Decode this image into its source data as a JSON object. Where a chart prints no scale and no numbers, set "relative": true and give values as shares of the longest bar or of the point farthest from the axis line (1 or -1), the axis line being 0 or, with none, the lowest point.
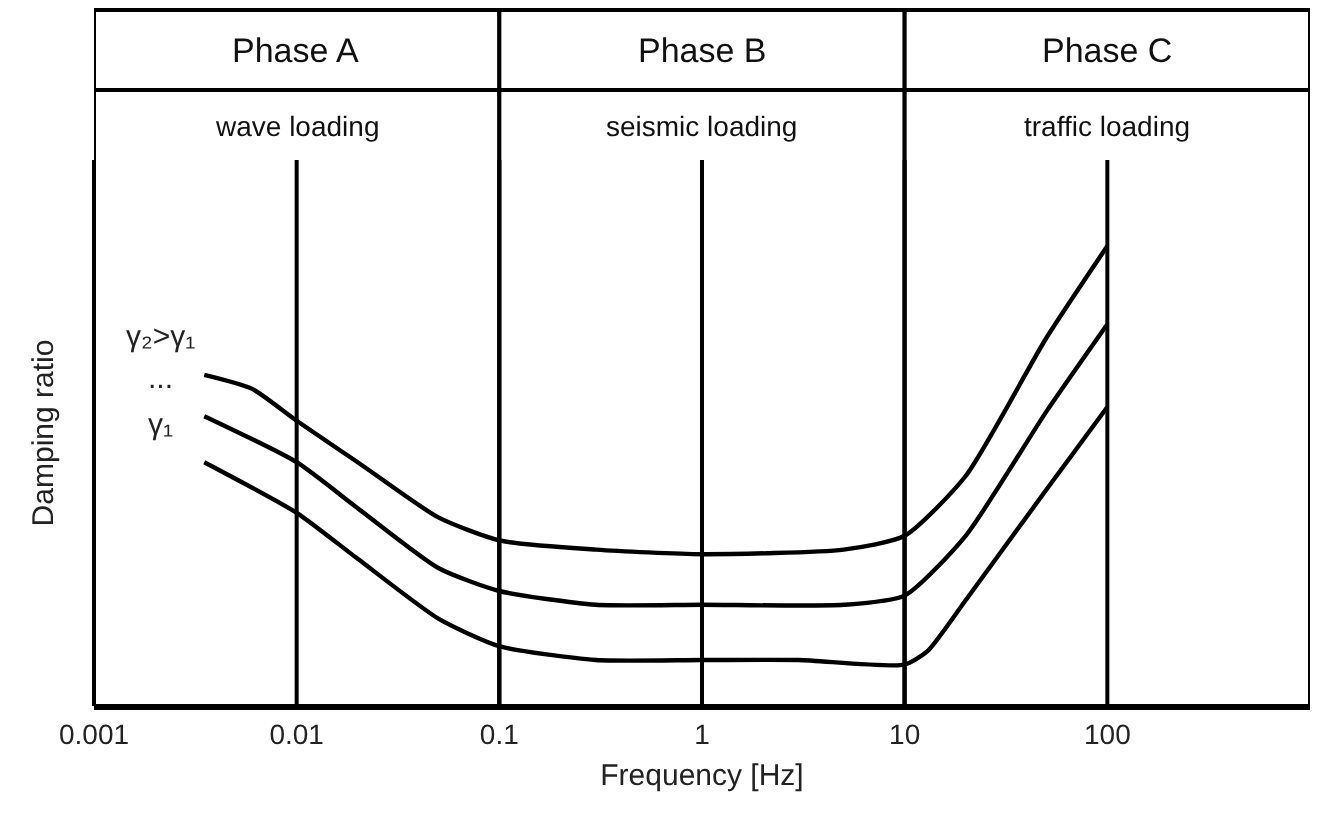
{
  "chart_data": {
    "type": "line",
    "relative": true,
    "xlabel": "Frequency [Hz]",
    "ylabel": "Damping ratio",
    "log": "x",
    "xlim": [
      0.001,
      1000
    ],
    "xticks": [
      0.001,
      0.01,
      0.1,
      1,
      10,
      100
    ],
    "grid": false,
    "legend": false,
    "marker": "none",
    "line_style": "solid",
    "tick_labels": "x",
    "series": [
      {
        "name": "γ₂>γ₁",
        "color": "#000000",
        "x": [
          0.0035,
          0.006,
          0.01,
          0.02,
          0.05,
          0.1,
          0.3,
          1,
          5,
          10,
          20,
          50,
          100
        ],
        "values": [
          0.72,
          0.69,
          0.62,
          0.53,
          0.41,
          0.36,
          0.34,
          0.33,
          0.34,
          0.37,
          0.5,
          0.8,
          1
        ]
      },
      {
        "name": "...",
        "color": "#000000",
        "x": [
          0.0035,
          0.01,
          0.02,
          0.05,
          0.1,
          0.3,
          1,
          5,
          10,
          20,
          50,
          100
        ],
        "values": [
          0.63,
          0.53,
          0.43,
          0.3,
          0.25,
          0.22,
          0.22,
          0.22,
          0.24,
          0.37,
          0.64,
          0.83
        ]
      },
      {
        "name": "γ₁",
        "color": "#000000",
        "x": [
          0.0035,
          0.01,
          0.02,
          0.05,
          0.1,
          0.3,
          1,
          3,
          10,
          13,
          20,
          50,
          100
        ],
        "values": [
          0.53,
          0.42,
          0.32,
          0.19,
          0.13,
          0.1,
          0.1,
          0.1,
          0.09,
          0.12,
          0.23,
          0.47,
          0.65
        ]
      }
    ],
    "ref_lines": [
      {
        "axis": "x",
        "value": 0.01,
        "label": null,
        "color": "#000000"
      },
      {
        "axis": "x",
        "value": 0.1,
        "label": null,
        "color": "#000000"
      },
      {
        "axis": "x",
        "value": 1,
        "label": null,
        "color": "#000000"
      },
      {
        "axis": "x",
        "value": 10,
        "label": null,
        "color": "#000000"
      },
      {
        "axis": "x",
        "value": 100,
        "label": null,
        "color": "#000000"
      }
    ],
    "bands": [
      {
        "axis": "x",
        "from": 0.001,
        "to": 0.1,
        "label": "Phase A",
        "color": "#ffffff"
      },
      {
        "axis": "x",
        "from": 0.1,
        "to": 10,
        "label": "Phase B",
        "color": "#ffffff"
      },
      {
        "axis": "x",
        "from": 10,
        "to": 1000,
        "label": "Phase C",
        "color": "#ffffff"
      }
    ],
    "annotations": [
      "wave loading",
      "seismic loading",
      "traffic loading"
    ]
  }
}
